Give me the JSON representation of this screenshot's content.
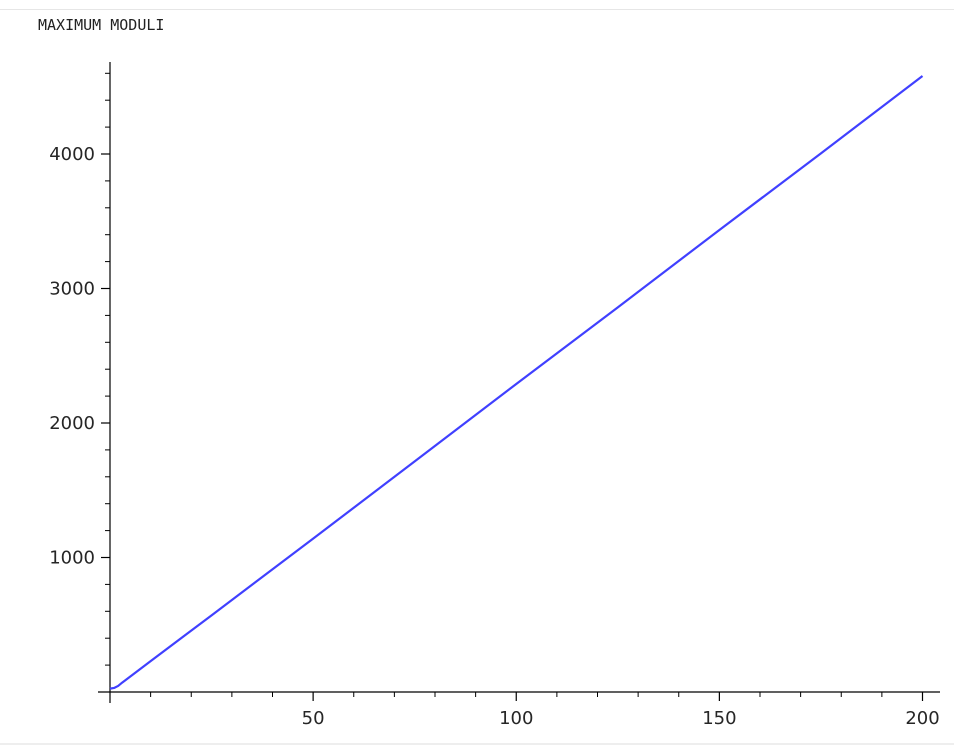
{
  "output": {
    "label": "MAXIMUM MODULI"
  },
  "chart_data": {
    "type": "line",
    "title": "",
    "xlabel": "",
    "ylabel": "",
    "xlim": [
      0,
      205
    ],
    "ylim": [
      0,
      4700
    ],
    "x_ticks": [
      50,
      100,
      150,
      200
    ],
    "y_ticks": [
      1000,
      2000,
      3000,
      4000
    ],
    "grid": false,
    "legend": "none",
    "series": [
      {
        "color": "#4040ff",
        "x": [
          0,
          1,
          2,
          3,
          5,
          10,
          25,
          50,
          75,
          100,
          125,
          150,
          175,
          200
        ],
        "y": [
          25,
          30,
          45,
          70,
          115,
          230,
          570,
          1140,
          1715,
          2290,
          2860,
          3435,
          4005,
          4580
        ]
      }
    ]
  }
}
